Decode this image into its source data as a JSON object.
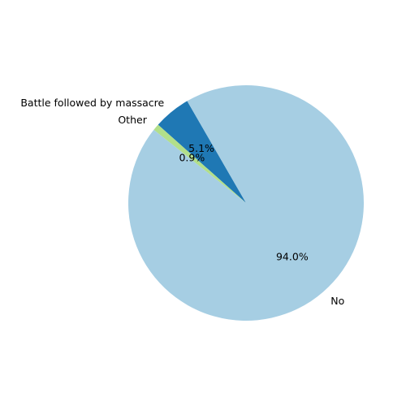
{
  "chart_data": {
    "type": "pie",
    "start_angle_deg": 120,
    "direction": "counterclockwise",
    "slices": [
      {
        "label": "Battle followed by massacre",
        "value": 5.1,
        "pct_label": "5.1%",
        "color": "#1f78b4"
      },
      {
        "label": "Other",
        "value": 0.9,
        "pct_label": "0.9%",
        "color": "#b2df8a"
      },
      {
        "label": "No",
        "value": 94.0,
        "pct_label": "94.0%",
        "color": "#a6cee3"
      }
    ]
  }
}
